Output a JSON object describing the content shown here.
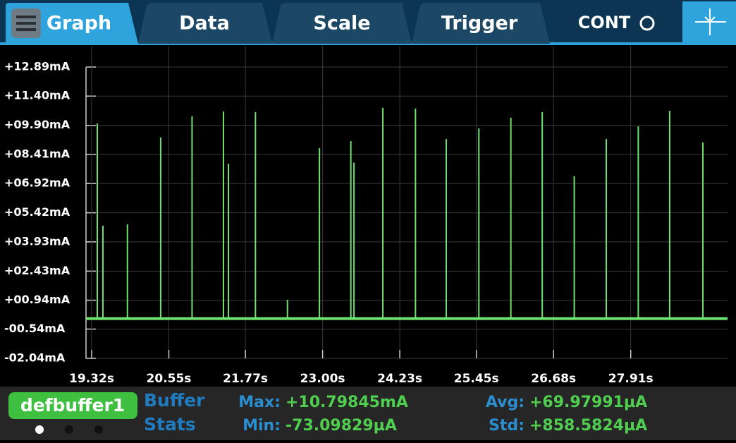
{
  "tabs": [
    "Graph",
    "Data",
    "Scale",
    "Trigger",
    "CONT"
  ],
  "chart_data": {
    "type": "spike",
    "x": [
      19.41,
      19.5,
      19.89,
      20.42,
      20.92,
      21.42,
      21.5,
      21.93,
      22.44,
      22.95,
      23.45,
      23.5,
      23.96,
      24.48,
      24.97,
      25.49,
      26.0,
      26.5,
      27.01,
      27.52,
      28.03,
      28.53,
      29.06
    ],
    "values": [
      10.0,
      4.76,
      4.83,
      9.28,
      10.36,
      10.61,
      7.94,
      10.58,
      0.96,
      8.73,
      9.09,
      7.99,
      10.8,
      10.76,
      9.2,
      9.75,
      10.29,
      10.58,
      7.29,
      9.2,
      9.85,
      10.65,
      9.02
    ],
    "color": "#6fe36f",
    "xlim": [
      19.32,
      29.43
    ],
    "ylim": [
      -2.04,
      12.89
    ],
    "xticks": [
      {
        "value": 19.32,
        "label": "19.32s"
      },
      {
        "value": 20.55,
        "label": "20.55s"
      },
      {
        "value": 21.77,
        "label": "21.77s"
      },
      {
        "value": 23.0,
        "label": "23.00s"
      },
      {
        "value": 24.23,
        "label": "24.23s"
      },
      {
        "value": 25.45,
        "label": "25.45s"
      },
      {
        "value": 26.68,
        "label": "26.68s"
      },
      {
        "value": 27.91,
        "label": "27.91s"
      }
    ],
    "yticks": [
      {
        "value": 12.89,
        "label": "+12.89mA"
      },
      {
        "value": 11.4,
        "label": "+11.40mA"
      },
      {
        "value": 9.9,
        "label": "+09.90mA"
      },
      {
        "value": 8.41,
        "label": "+08.41mA"
      },
      {
        "value": 6.92,
        "label": "+06.92mA"
      },
      {
        "value": 5.42,
        "label": "+05.42mA"
      },
      {
        "value": 3.93,
        "label": "+03.93mA"
      },
      {
        "value": 2.43,
        "label": "+02.43mA"
      },
      {
        "value": 0.94,
        "label": "+00.94mA"
      },
      {
        "value": -0.54,
        "label": "-00.54mA"
      },
      {
        "value": -2.04,
        "label": "-02.04mA"
      }
    ],
    "grid": true
  },
  "buffer": {
    "name": "defbuffer1",
    "title": [
      "Buffer",
      "Stats"
    ]
  },
  "stats": [
    {
      "label": "Max:",
      "value": "+10.79845mA"
    },
    {
      "label": "Min:",
      "value": "-73.09829µA"
    },
    {
      "label": "Avg:",
      "value": "+69.97991µA"
    },
    {
      "label": "Std:",
      "value": "+858.5824µA"
    }
  ]
}
